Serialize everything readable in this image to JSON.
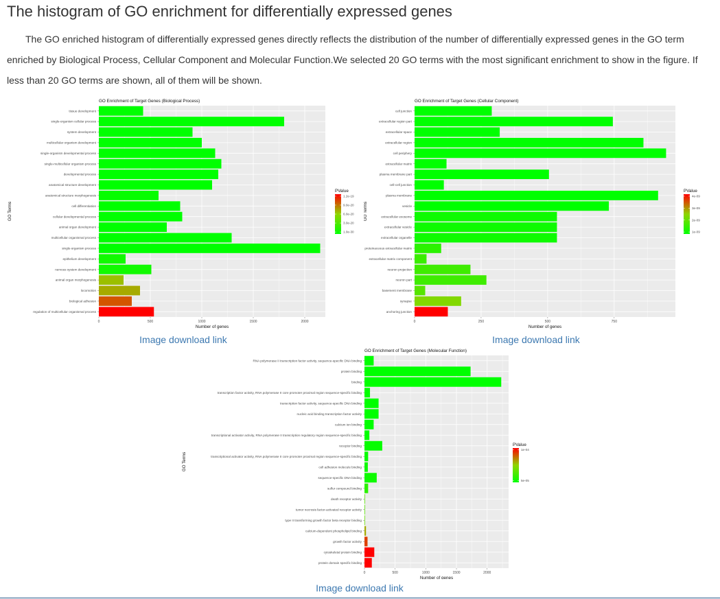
{
  "page": {
    "title": "The histogram of GO enrichment for differentially expressed genes",
    "description": "The GO enriched histogram of differentially expressed genes directly reflects the distribution of the number of differentially expressed genes in the GO term enriched by Biological Process, Cellular Component and Molecular Function.We selected 20 GO terms with the most significant enrichment to show in the figure. If less than 20 GO terms are shown, all of them will be shown.",
    "download_link_label": "Image download link"
  },
  "colors": {
    "low": "#00ff00",
    "mid": "#90d400",
    "high": "#ff0000",
    "link": "#3c78b0",
    "panel": "#ebebeb"
  },
  "chart_data": [
    {
      "type": "bar",
      "orientation": "horizontal",
      "title": "GO Enrichment of Target Genes (Biological Process)",
      "xlabel": "Number of genes",
      "ylabel": "GO Terms",
      "xlim": [
        0,
        2200
      ],
      "xticks": [
        "0",
        "500",
        "1000",
        "1500",
        "2000"
      ],
      "grid": true,
      "legend": {
        "title": "PValue",
        "position": "right",
        "labels": [
          "1.2e-19",
          "9.0e-20",
          "6.0e-20",
          "3.0e-20",
          "1.0e-30"
        ]
      },
      "categories": [
        "tissue development",
        "single-organism cellular process",
        "system development",
        "multicellular organism development",
        "single-organism developmental process",
        "single-multicellular organism process",
        "developmental process",
        "anatomical structure development",
        "anatomical structure morphogenesis",
        "cell differentiation",
        "cellular developmental process",
        "animal organ development",
        "multicellular organismal process",
        "single-organism process",
        "epithelium development",
        "nervous system development",
        "animal organ morphogenesis",
        "locomotion",
        "biological adhesion",
        "regulation of multicellular organismal process"
      ],
      "values": [
        430,
        1800,
        910,
        1000,
        1130,
        1190,
        1160,
        1100,
        580,
        790,
        810,
        660,
        1290,
        2150,
        260,
        510,
        240,
        400,
        320,
        535
      ],
      "pvalue_level": [
        0,
        0,
        0,
        0,
        0,
        0,
        0,
        0,
        0.02,
        0,
        0,
        0,
        0,
        0,
        0.06,
        0.06,
        0.55,
        0.6,
        0.8,
        1.0
      ]
    },
    {
      "type": "bar",
      "orientation": "horizontal",
      "title": "GO Enrichment of Target Genes (Cellular Component)",
      "xlabel": "Number of genes",
      "ylabel": "GO Terms",
      "xlim": [
        0,
        980
      ],
      "xticks": [
        "0",
        "250",
        "500",
        "750"
      ],
      "grid": true,
      "legend": {
        "title": "PValue",
        "position": "right",
        "labels": [
          "4e-09",
          "3e-09",
          "2e-09",
          "1e-09"
        ]
      },
      "categories": [
        "cell junction",
        "extracellular region part",
        "extracellular space",
        "extracellular region",
        "cell periphery",
        "extracellular matrix",
        "plasma membrane part",
        "cell-cell junction",
        "plasma membrane",
        "vesicle",
        "extracellular exosome",
        "extracellular vesicle",
        "extracellular organelle",
        "proteinaceous extracellular matrix",
        "extracellular matrix component",
        "neuron projection",
        "neuron part",
        "basement membrane",
        "synapse",
        "anchoring junction"
      ],
      "values": [
        290,
        745,
        320,
        860,
        945,
        120,
        505,
        110,
        915,
        730,
        535,
        535,
        535,
        100,
        45,
        210,
        270,
        40,
        175,
        125
      ],
      "pvalue_level": [
        0,
        0,
        0,
        0,
        0,
        0,
        0,
        0,
        0,
        0,
        0.05,
        0.05,
        0.05,
        0.15,
        0.2,
        0.22,
        0.22,
        0.3,
        0.45,
        1.0
      ]
    },
    {
      "type": "bar",
      "orientation": "horizontal",
      "title": "GO Enrichment of Target Genes (Molecular Function)",
      "xlabel": "Number of genes",
      "ylabel": "GO Terms",
      "xlim": [
        0,
        2350
      ],
      "xticks": [
        "0",
        "500",
        "1000",
        "1500",
        "2000"
      ],
      "grid": true,
      "legend": {
        "title": "PValue",
        "position": "right",
        "labels": [
          "1e-04",
          "5e-05"
        ]
      },
      "categories": [
        "RNA polymerase II transcription factor activity, sequence-specific DNA binding",
        "protein binding",
        "binding",
        "transcription factor activity, RNA polymerase II core promoter proximal region sequence-specific binding",
        "transcription factor activity, sequence-specific DNA binding",
        "nucleic acid binding transcription factor activity",
        "calcium ion binding",
        "transcriptional activator activity, RNA polymerase II transcription regulatory region sequence-specific binding",
        "receptor binding",
        "transcriptional activator activity, RNA polymerase II core promoter proximal region sequence-specific binding",
        "cell adhesion molecule binding",
        "sequence-specific DNA binding",
        "sulfur compound binding",
        "death receptor activity",
        "tumor necrosis factor-activated receptor activity",
        "type II transforming growth factor beta receptor binding",
        "calcium-dependent phospholipid binding",
        "growth factor activity",
        "cytoskeletal protein binding",
        "protein domain specific binding"
      ],
      "values": [
        150,
        1730,
        2230,
        90,
        230,
        230,
        150,
        80,
        290,
        60,
        55,
        200,
        60,
        8,
        8,
        8,
        25,
        50,
        160,
        120
      ],
      "pvalue_level": [
        0,
        0,
        0,
        0,
        0,
        0,
        0,
        0,
        0.02,
        0.02,
        0.05,
        0.05,
        0.15,
        0.3,
        0.3,
        0.35,
        0.6,
        0.85,
        1.0,
        1.0
      ]
    }
  ]
}
